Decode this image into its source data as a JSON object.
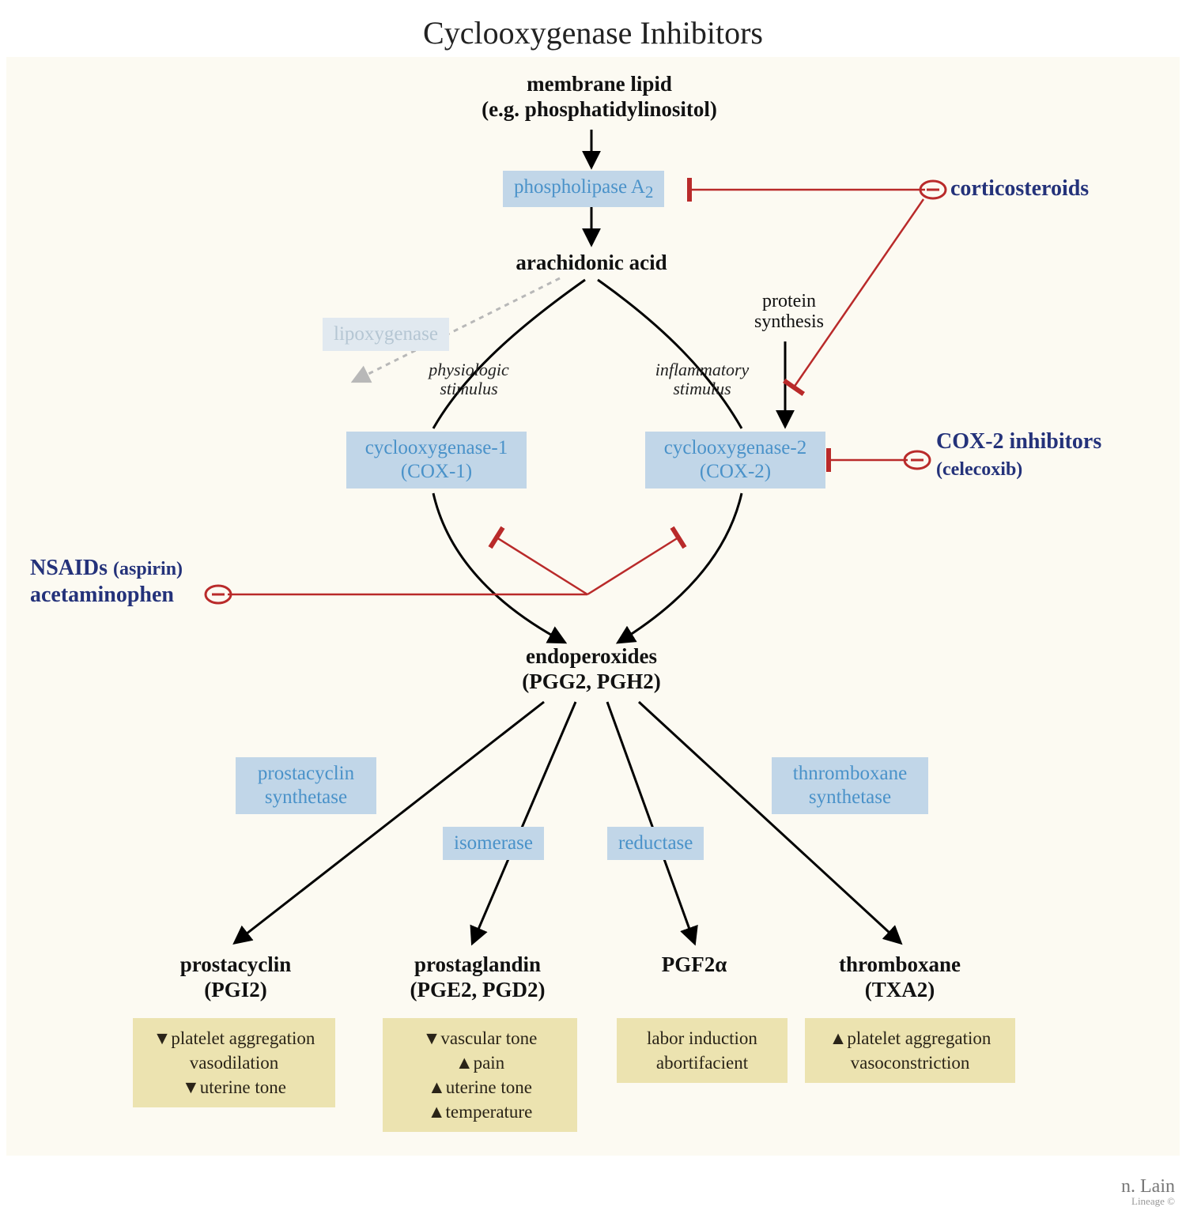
{
  "title": "Cyclooxygenase Inhibitors",
  "colors": {
    "bg": "#fcfaf2",
    "enzyme_bg": "#c1d6e8",
    "enzyme_fg": "#4a92c9",
    "enzyme_faded_bg": "#e1e9f0",
    "enzyme_faded_fg": "#b5c6d3",
    "drug_fg": "#24327a",
    "effects_bg": "#ece3b0",
    "effects_fg": "#2a2418",
    "inhibit": "#b92a2a",
    "arrow": "#000000",
    "dotted": "#b8b8b8"
  },
  "nodes": {
    "membrane_lipid_l1": "membrane lipid",
    "membrane_lipid_l2": "(e.g. phosphatidylinositol)",
    "phospholipase": "phospholipase A",
    "phospholipase_sub": "2",
    "arachidonic": "arachidonic acid",
    "lipoxygenase": "lipoxygenase",
    "cox1_l1": "cyclooxygenase-1",
    "cox1_l2": "(COX-1)",
    "cox2_l1": "cyclooxygenase-2",
    "cox2_l2": "(COX-2)",
    "phys_stim_l1": "physiologic",
    "phys_stim_l2": "stimulus",
    "infl_stim_l1": "inflammatory",
    "infl_stim_l2": "stimulus",
    "protein_syn_l1": "protein",
    "protein_syn_l2": "synthesis",
    "endo_l1": "endoperoxides",
    "endo_l2": "(PGG2, PGH2)",
    "pgi_synth_l1": "prostacyclin",
    "pgi_synth_l2": "synthetase",
    "isomerase": "isomerase",
    "reductase": "reductase",
    "tx_synth_l1": "thnromboxane",
    "tx_synth_l2": "synthetase",
    "pgi_l1": "prostacyclin",
    "pgi_l2": "(PGI2)",
    "pge_l1": "prostaglandin",
    "pge_l2": "(PGE2, PGD2)",
    "pgf": "PGF2α",
    "txa_l1": "thromboxane",
    "txa_l2": "(TXA2)"
  },
  "drugs": {
    "cortico": "corticosteroids",
    "cox2_inh_l1": "COX-2 inhibitors",
    "cox2_inh_l2": "(celecoxib)",
    "nsaids_l1": "NSAIDs ",
    "nsaids_paren": "(aspirin)",
    "nsaids_l2": "acetaminophen"
  },
  "effects": {
    "pgi": {
      "items": [
        "↓platelet aggregation",
        "vasodilation",
        "↓uterine tone"
      ]
    },
    "pge": {
      "items": [
        "↓vascular tone",
        "↑pain",
        "↑uterine tone",
        "↑temperature"
      ]
    },
    "pgf": {
      "items": [
        "labor induction",
        "abortifacient"
      ]
    },
    "txa": {
      "items": [
        "↑platelet aggregation",
        "vasoconstriction"
      ]
    }
  },
  "signature": {
    "main": "n. Lain",
    "sub": "Lineage ©"
  },
  "layout": {
    "title_fontsize": 40,
    "node_fontsize": 27,
    "enzyme_fontsize": 25,
    "drug_fontsize": 28,
    "sublabel_fontsize": 22,
    "effects_fontsize": 23
  },
  "diagram": {
    "type": "flowchart",
    "arrows": [
      {
        "from": "membrane_lipid",
        "to": "phospholipase",
        "style": "solid"
      },
      {
        "from": "phospholipase",
        "to": "arachidonic",
        "style": "solid"
      },
      {
        "from": "arachidonic",
        "to": "lipoxygenase",
        "style": "dotted"
      },
      {
        "from": "arachidonic",
        "to": "cox1",
        "style": "curved"
      },
      {
        "from": "arachidonic",
        "to": "cox2",
        "style": "curved"
      },
      {
        "from": "cox1",
        "to": "endoperoxides",
        "style": "curved"
      },
      {
        "from": "cox2",
        "to": "endoperoxides",
        "style": "curved"
      },
      {
        "from": "protein_synthesis",
        "to": "cox2",
        "style": "solid"
      },
      {
        "from": "endoperoxides",
        "to": "prostacyclin",
        "style": "solid"
      },
      {
        "from": "endoperoxides",
        "to": "prostaglandin",
        "style": "solid"
      },
      {
        "from": "endoperoxides",
        "to": "PGF2a",
        "style": "solid"
      },
      {
        "from": "endoperoxides",
        "to": "thromboxane",
        "style": "solid"
      }
    ],
    "inhibitions": [
      {
        "drug": "corticosteroids",
        "target": "phospholipase"
      },
      {
        "drug": "corticosteroids",
        "target": "protein_synthesis"
      },
      {
        "drug": "COX2_inhibitors",
        "target": "cox2"
      },
      {
        "drug": "NSAIDs",
        "target": "cox1"
      },
      {
        "drug": "NSAIDs",
        "target": "cox2"
      }
    ]
  }
}
